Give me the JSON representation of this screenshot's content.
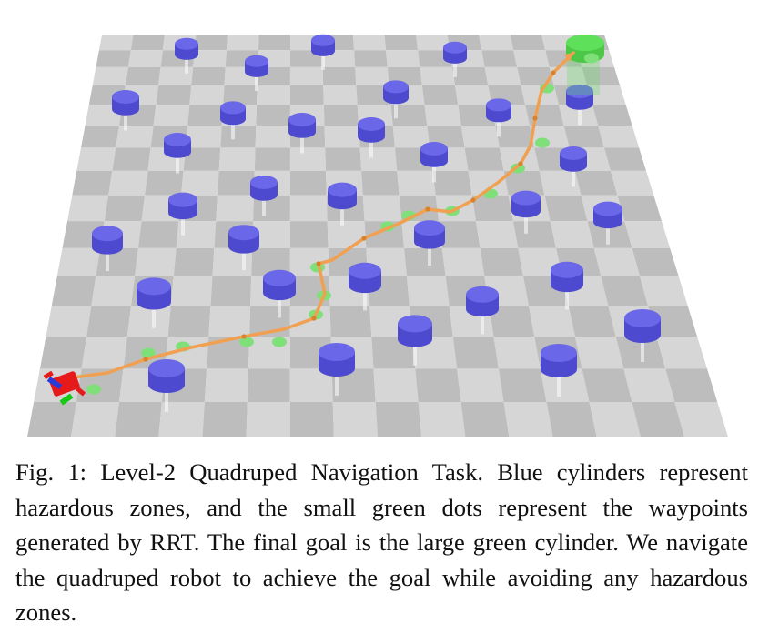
{
  "figure": {
    "caption_label": "Fig. 1:",
    "caption_text": "Level-2 Quadruped Navigation Task. Blue cylinders represent hazardous zones, and the small green dots represent the waypoints generated by RRT. The final goal is the large green cylinder. We navigate the quadruped robot to achieve the goal while avoiding any hazardous zones."
  },
  "scene": {
    "floor_color_a": "#d6d6d6",
    "floor_color_b": "#bdbdbd",
    "hazard_color": "#6a67e8",
    "waypoint_color": "#7fe07a",
    "path_color": "#f0a050",
    "goal_color": "#5fe05a",
    "robot_color": "#e61a1a"
  }
}
